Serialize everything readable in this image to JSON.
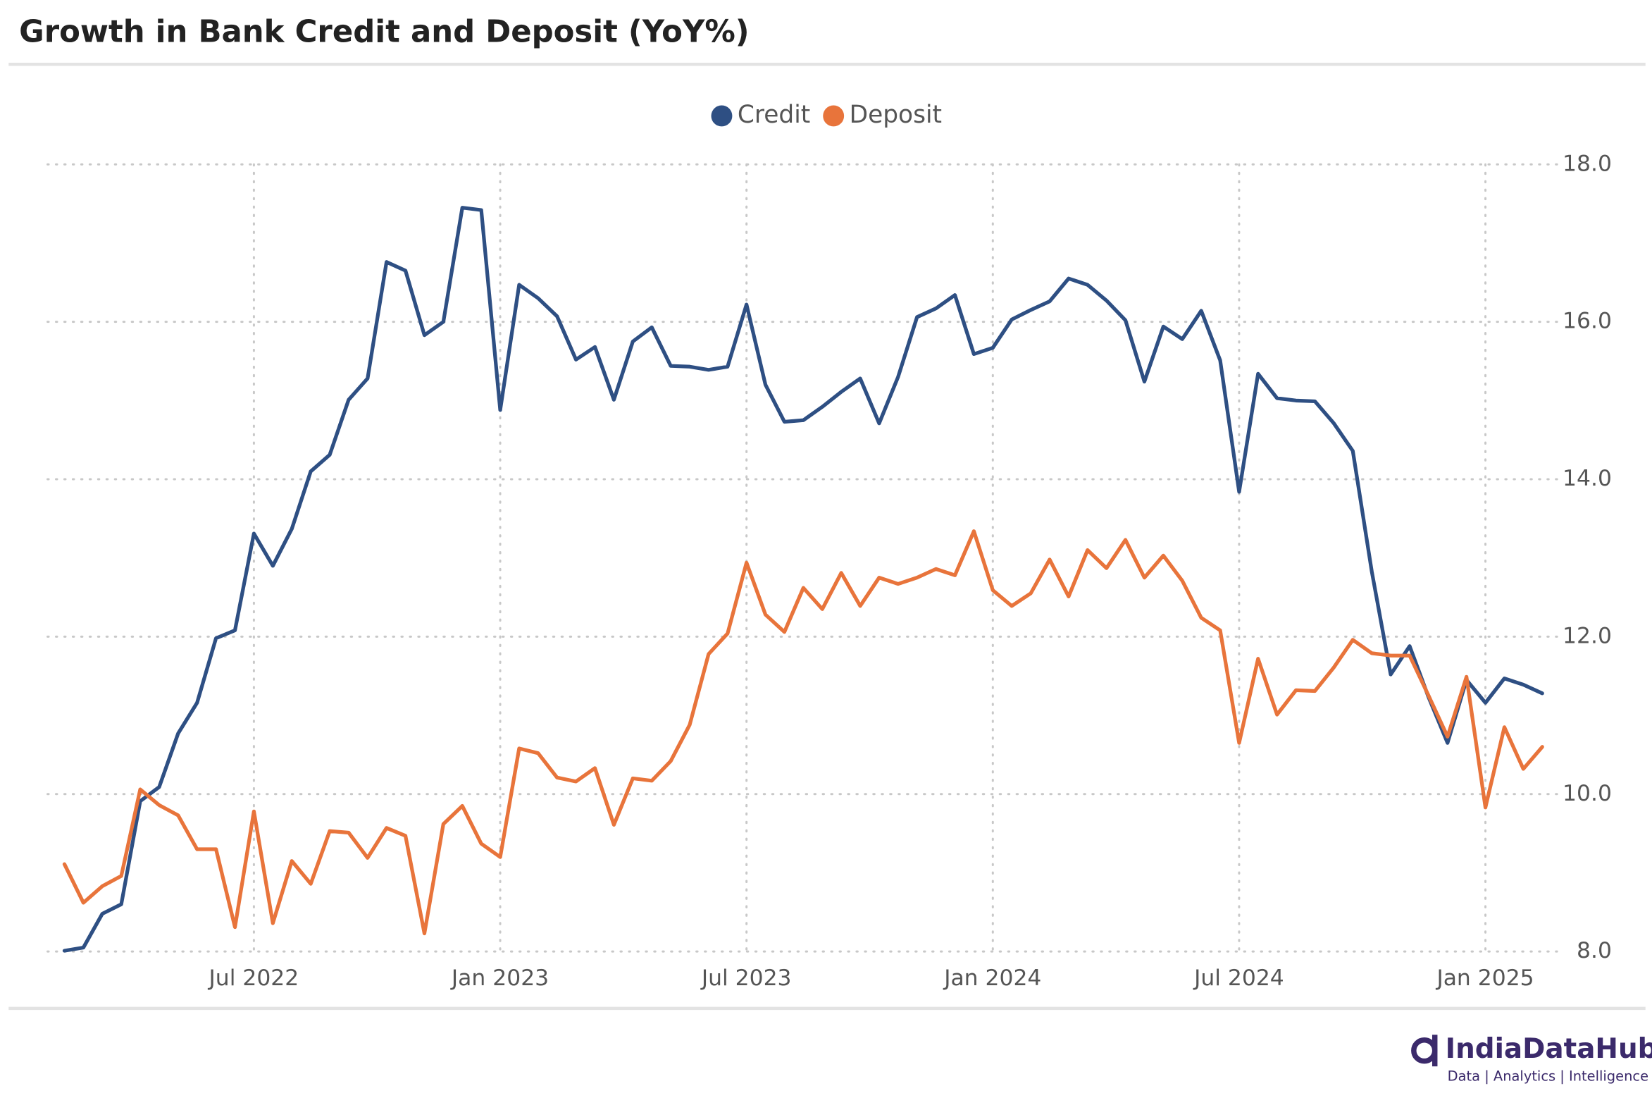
{
  "chart_data": {
    "type": "line",
    "title": "Growth in Bank Credit and Deposit (YoY%)",
    "categories": [
      null,
      null,
      null,
      null,
      null,
      null,
      null,
      null,
      null,
      null,
      "Jul 2022",
      null,
      null,
      null,
      null,
      null,
      null,
      null,
      null,
      null,
      null,
      null,
      null,
      "Jan 2023",
      null,
      null,
      null,
      null,
      null,
      null,
      null,
      null,
      null,
      null,
      null,
      null,
      "Jul 2023",
      null,
      null,
      null,
      null,
      null,
      null,
      null,
      null,
      null,
      null,
      null,
      null,
      "Jan 2024",
      null,
      null,
      null,
      null,
      null,
      null,
      null,
      null,
      null,
      null,
      null,
      null,
      "Jul 2024",
      null,
      null,
      null,
      null,
      null,
      null,
      null,
      null,
      null,
      null,
      null,
      null,
      "Jan 2025",
      null,
      null,
      null
    ],
    "series": [
      {
        "name": "Credit",
        "color": "#2e4f83",
        "values": [
          8.01,
          8.05,
          8.48,
          8.6,
          9.91,
          10.09,
          10.77,
          11.16,
          11.98,
          12.08,
          13.31,
          12.9,
          13.37,
          14.1,
          14.31,
          15.01,
          15.28,
          16.76,
          16.65,
          15.83,
          16.0,
          17.45,
          17.42,
          14.88,
          16.47,
          16.3,
          16.07,
          15.52,
          15.68,
          15.01,
          15.75,
          15.93,
          15.44,
          15.43,
          15.39,
          15.43,
          16.22,
          15.2,
          14.73,
          14.75,
          14.92,
          15.11,
          15.28,
          14.71,
          15.3,
          16.06,
          16.17,
          16.34,
          15.59,
          15.67,
          16.03,
          16.15,
          16.26,
          16.55,
          16.47,
          16.27,
          16.02,
          15.24,
          15.94,
          15.78,
          16.14,
          15.51,
          13.84,
          15.34,
          15.03,
          15.0,
          14.99,
          14.71,
          14.36,
          12.83,
          11.52,
          11.88,
          11.23,
          10.65,
          11.45,
          11.16,
          11.47,
          11.39,
          11.28
        ]
      },
      {
        "name": "Deposit",
        "color": "#e8743b",
        "values": [
          9.11,
          8.62,
          8.83,
          8.96,
          10.06,
          9.86,
          9.73,
          9.3,
          9.3,
          8.31,
          9.78,
          8.36,
          9.15,
          8.86,
          9.53,
          9.51,
          9.19,
          9.57,
          9.47,
          8.23,
          9.62,
          9.85,
          9.37,
          9.2,
          10.58,
          10.52,
          10.21,
          10.16,
          10.33,
          9.61,
          10.2,
          10.17,
          10.42,
          10.88,
          11.78,
          12.04,
          12.94,
          12.28,
          12.06,
          12.62,
          12.35,
          12.81,
          12.39,
          12.75,
          12.67,
          12.75,
          12.86,
          12.78,
          13.34,
          12.59,
          12.39,
          12.55,
          12.98,
          12.51,
          13.1,
          12.87,
          13.23,
          12.75,
          13.03,
          12.71,
          12.24,
          12.08,
          10.65,
          11.72,
          11.01,
          11.32,
          11.31,
          11.61,
          11.96,
          11.79,
          11.76,
          11.76,
          11.25,
          10.73,
          11.49,
          9.83,
          10.85,
          10.32,
          10.6
        ]
      }
    ],
    "ylim": [
      8,
      18
    ],
    "yticks": [
      {
        "value": 8,
        "label": "8.0"
      },
      {
        "value": 10,
        "label": "10.0"
      },
      {
        "value": 12,
        "label": "12.0"
      },
      {
        "value": 14,
        "label": "14.0"
      },
      {
        "value": 16,
        "label": "16.0"
      },
      {
        "value": 18,
        "label": "18.0"
      }
    ],
    "grid": true,
    "legend": "top"
  },
  "branding": {
    "name": "IndiaDataHub",
    "tagline": "Data | Analytics | Intelligence"
  }
}
